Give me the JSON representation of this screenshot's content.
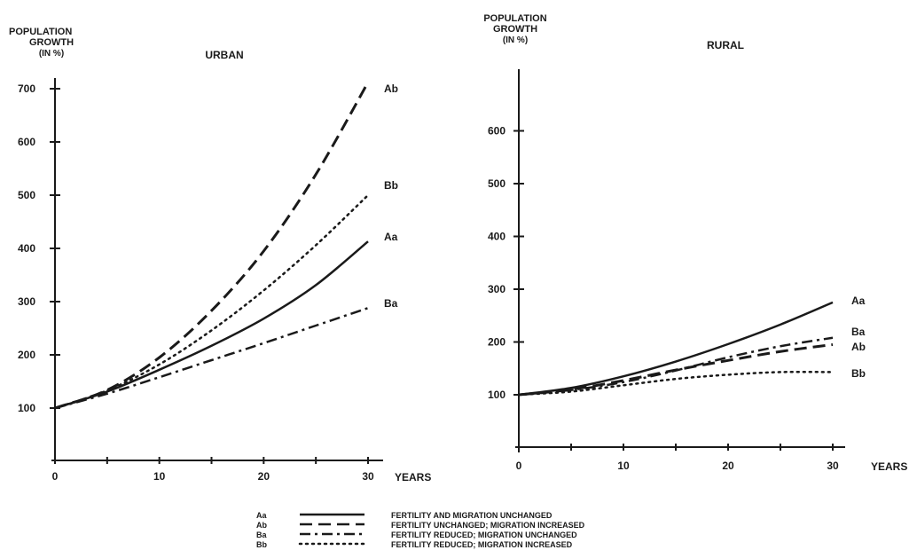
{
  "chart_data": [
    {
      "type": "line",
      "title": "URBAN",
      "ylabel": [
        "POPULATION",
        "GROWTH",
        "(IN %)"
      ],
      "xlabel": "YEARS",
      "x_ticks": [
        0,
        10,
        20,
        30
      ],
      "y_ticks": [
        100,
        200,
        300,
        400,
        500,
        600,
        700
      ],
      "xlim": [
        0,
        30
      ],
      "ylim": [
        0,
        700
      ],
      "grid": false,
      "x": [
        0,
        5,
        10,
        15,
        20,
        25,
        30
      ],
      "series": [
        {
          "name": "Aa",
          "values": [
            100,
            131,
            172,
            217,
            268,
            331,
            413
          ]
        },
        {
          "name": "Ab",
          "values": [
            100,
            134,
            195,
            283,
            395,
            539,
            712
          ]
        },
        {
          "name": "Ba",
          "values": [
            100,
            127,
            158,
            190,
            222,
            255,
            288
          ]
        },
        {
          "name": "Bb",
          "values": [
            100,
            133,
            182,
            246,
            321,
            406,
            500
          ]
        }
      ]
    },
    {
      "type": "line",
      "title": "RURAL",
      "ylabel": [
        "POPULATION",
        "GROWTH",
        "(IN %)"
      ],
      "xlabel": "YEARS",
      "x_ticks": [
        0,
        10,
        20,
        30
      ],
      "y_ticks": [
        100,
        200,
        300,
        400,
        500,
        600
      ],
      "xlim": [
        0,
        30
      ],
      "ylim": [
        0,
        700
      ],
      "grid": false,
      "x": [
        0,
        5,
        10,
        15,
        20,
        25,
        30
      ],
      "series": [
        {
          "name": "Aa",
          "values": [
            100,
            113,
            135,
            163,
            196,
            233,
            275
          ]
        },
        {
          "name": "Ab",
          "values": [
            100,
            110,
            127,
            147,
            165,
            182,
            195
          ]
        },
        {
          "name": "Ba",
          "values": [
            100,
            109,
            124,
            146,
            171,
            192,
            208
          ]
        },
        {
          "name": "Bb",
          "values": [
            100,
            106,
            118,
            130,
            138,
            143,
            143
          ]
        }
      ]
    }
  ],
  "legend": [
    {
      "key": "Aa",
      "style": "solid",
      "text": "FERTILITY AND MIGRATION UNCHANGED"
    },
    {
      "key": "Ab",
      "style": "dashed",
      "text": "FERTILITY UNCHANGED; MIGRATION INCREASED"
    },
    {
      "key": "Ba",
      "style": "dashdot",
      "text": "FERTILITY REDUCED; MIGRATION UNCHANGED"
    },
    {
      "key": "Bb",
      "style": "dotted",
      "text": "FERTILITY REDUCED; MIGRATION INCREASED"
    }
  ]
}
